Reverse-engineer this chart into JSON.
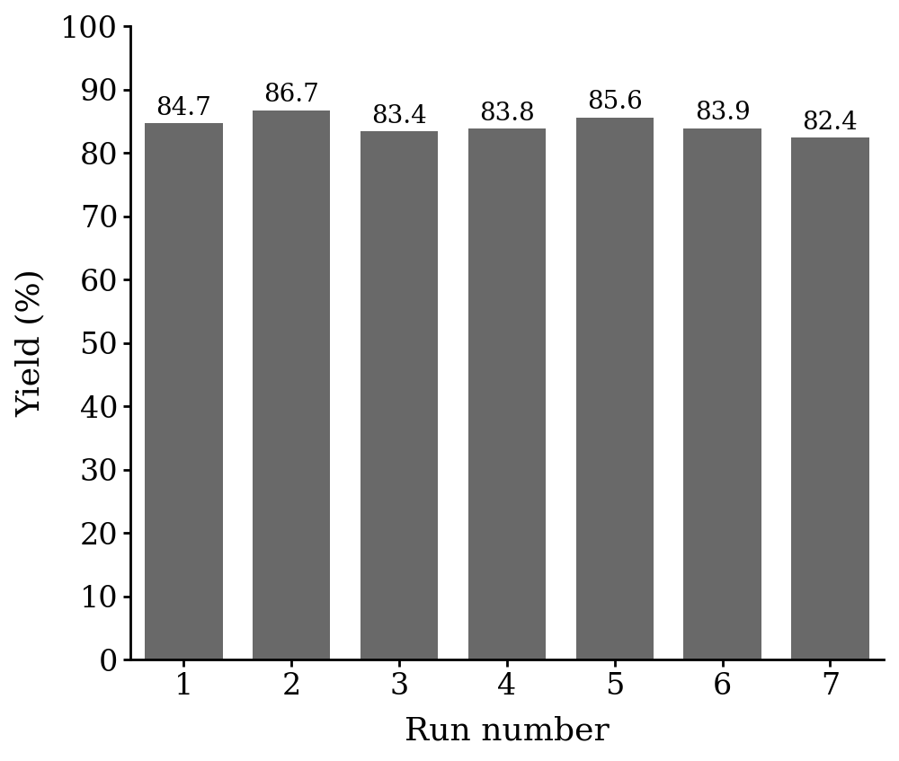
{
  "categories": [
    "1",
    "2",
    "3",
    "4",
    "5",
    "6",
    "7"
  ],
  "values": [
    84.7,
    86.7,
    83.4,
    83.8,
    85.6,
    83.9,
    82.4
  ],
  "bar_color": "#696969",
  "bar_edgecolor": "#696969",
  "xlabel": "Run number",
  "ylabel": "Yield (%)",
  "ylim": [
    0,
    100
  ],
  "yticks": [
    0,
    10,
    20,
    30,
    40,
    50,
    60,
    70,
    80,
    90,
    100
  ],
  "title": "",
  "label_fontsize": 26,
  "tick_fontsize": 24,
  "annotation_fontsize": 20,
  "bar_width": 0.72,
  "background_color": "#ffffff"
}
